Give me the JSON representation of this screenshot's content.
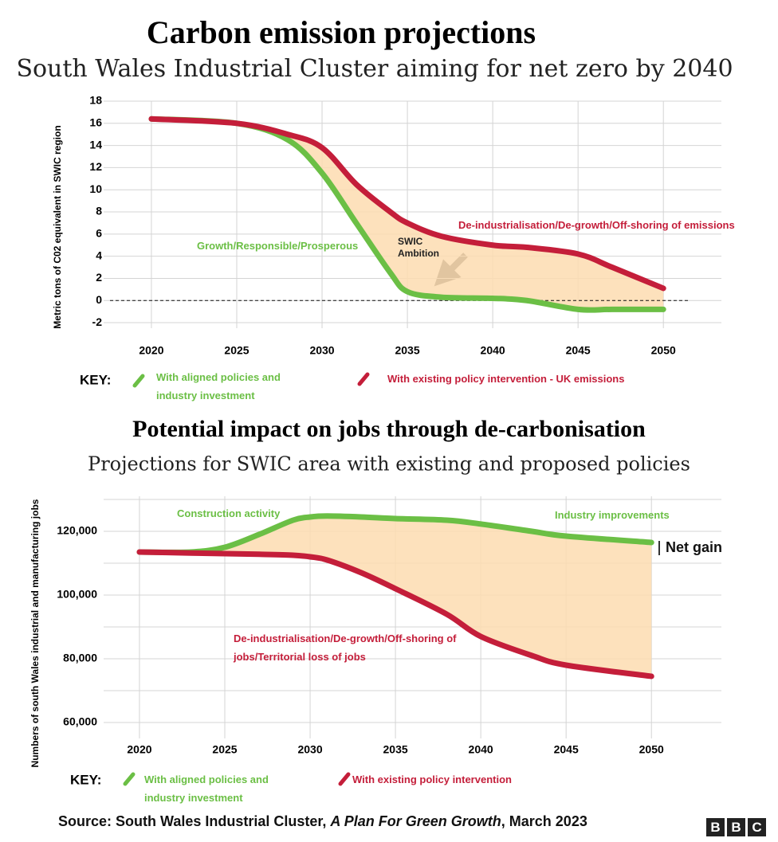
{
  "chart_data": [
    {
      "type": "line",
      "title": "Carbon emission projections",
      "subtitle": "South Wales Industrial Cluster aiming for net zero by 2040",
      "y_label": "Metric tons of C02 equivalent in SWIC region",
      "x": [
        2020,
        2025,
        2028,
        2030,
        2032,
        2034,
        2035,
        2037,
        2040,
        2042,
        2045,
        2047,
        2050
      ],
      "series": [
        {
          "name": "With aligned policies and industry investment",
          "color": "#6bbf45",
          "values": [
            16.4,
            16,
            14.5,
            11.5,
            7,
            2.5,
            0.8,
            0.3,
            0.2,
            0,
            -0.8,
            -0.8,
            -0.8
          ]
        },
        {
          "name": "With existing policy intervention - UK emissions",
          "color": "#c41e3a",
          "values": [
            16.4,
            16,
            15,
            13.8,
            10.5,
            8,
            7,
            5.8,
            5,
            4.8,
            4.2,
            3,
            1.1
          ]
        }
      ],
      "fill_between": true,
      "fill_color": "#fddcb0",
      "reference_line": 0,
      "xlim": [
        2017.2,
        2053.4
      ],
      "xticks": [
        2020,
        2025,
        2030,
        2035,
        2040,
        2045,
        2050
      ],
      "ylim": [
        -2.5,
        18
      ],
      "yticks": [
        -2,
        0,
        2,
        4,
        6,
        8,
        10,
        12,
        14,
        16,
        18
      ],
      "grid": true,
      "key_label": "KEY:",
      "annotations": [
        "Growth/Responsible/Prosperous",
        "De-industrialisation/De-growth/Off-shoring of emissions",
        "SWIC Ambition"
      ]
    },
    {
      "type": "line",
      "title": "Potential impact on jobs through de-carbonisation",
      "subtitle": "Projections for SWIC area with existing and proposed policies",
      "y_label": "Numbers of south Wales industrial and manufacturing jobs",
      "x": [
        2020,
        2023,
        2025,
        2027,
        2029,
        2030,
        2031,
        2033,
        2035,
        2038,
        2040,
        2043,
        2045,
        2050
      ],
      "series": [
        {
          "name": "With aligned policies and industry investment",
          "color": "#6bbf45",
          "values": [
            113500,
            113500,
            115000,
            119000,
            123500,
            124500,
            124800,
            124500,
            124000,
            123500,
            122300,
            120000,
            118500,
            116500
          ]
        },
        {
          "name": "With existing policy intervention",
          "color": "#c41e3a",
          "values": [
            113500,
            113200,
            113000,
            112800,
            112500,
            112000,
            111000,
            107000,
            102000,
            94000,
            87000,
            81000,
            78000,
            74500
          ]
        }
      ],
      "fill_between": true,
      "fill_color": "#fddcb0",
      "xlim": [
        2017.9,
        2054.1
      ],
      "xticks": [
        2020,
        2025,
        2030,
        2035,
        2040,
        2045,
        2050
      ],
      "ylim": [
        55000,
        131000
      ],
      "yticks": [
        {
          "value": 60000,
          "label": "60,000"
        },
        {
          "value": 80000,
          "label": "80,000"
        },
        {
          "value": 100000,
          "label": "100,000"
        },
        {
          "value": 120000,
          "label": "120,000"
        }
      ],
      "minor_yticks": [
        70000,
        90000,
        110000,
        130000
      ],
      "grid": true,
      "key_label": "KEY:",
      "annotations": [
        "Construction activity",
        "Industry improvements",
        "De-industrialisation/De-growth/Off-shoring of jobs/Territorial loss of jobs",
        "Net gain"
      ]
    }
  ],
  "source": {
    "prefix": "Source: South Wales Industrial Cluster,",
    "italic": "A Plan For Green Growth",
    "suffix": ", March 2023"
  },
  "logo": [
    "B",
    "B",
    "C"
  ]
}
